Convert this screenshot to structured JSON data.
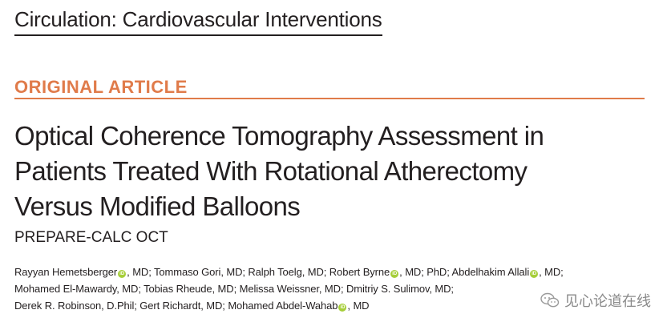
{
  "journal": {
    "title": "Circulation: Cardiovascular Interventions"
  },
  "article": {
    "type": "ORIGINAL ARTICLE",
    "title_lines": [
      "Optical Coherence Tomography Assessment in",
      "Patients Treated With Rotational Atherectomy",
      "Versus Modified Balloons"
    ],
    "subtitle": "PREPARE-CALC OCT"
  },
  "authors": {
    "line1": [
      "Rayyan Hemetsberger",
      ", MD; Tommaso Gori, MD; Ralph Toelg, MD; Robert Byrne",
      ", MD; PhD; Abdelhakim Allali",
      ", MD;"
    ],
    "line2": "Mohamed El-Mawardy, MD; Tobias Rheude, MD; Melissa Weissner, MD; Dmitriy S. Sulimov, MD;",
    "line3": [
      "Derek R. Robinson, D.Phil; Gert Richardt, MD; Mohamed Abdel-Wahab",
      ", MD"
    ],
    "orcid_badge": "iD"
  },
  "watermark": {
    "text": "见心论道在线",
    "icon": "wechat-icon"
  },
  "colors": {
    "accent": "#e07b4a",
    "text": "#231f20",
    "orcid": "#a6ce39",
    "watermark": "#8a8a8a"
  }
}
